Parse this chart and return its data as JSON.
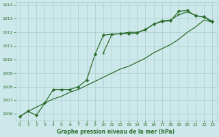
{
  "title": "Graphe pression niveau de la mer (hPa)",
  "bg_color": "#cce8ea",
  "grid_color": "#aacccc",
  "text_color": "#2d6e2d",
  "line_color": "#2d6e2d",
  "ylim": [
    1005.5,
    1014.2
  ],
  "yticks": [
    1006,
    1007,
    1008,
    1009,
    1010,
    1011,
    1012,
    1013,
    1014
  ],
  "xlim": [
    -0.5,
    23.5
  ],
  "xticks": [
    0,
    1,
    2,
    3,
    4,
    5,
    6,
    7,
    8,
    9,
    10,
    11,
    12,
    13,
    14,
    15,
    16,
    17,
    18,
    19,
    20,
    21,
    22,
    23
  ],
  "x_all": [
    0,
    1,
    2,
    3,
    4,
    5,
    6,
    7,
    8,
    9,
    10,
    11,
    12,
    13,
    14,
    15,
    16,
    17,
    18,
    19,
    20,
    21,
    22,
    23
  ],
  "series_diamond_x": [
    0,
    1,
    2,
    3,
    4,
    5,
    6,
    7,
    8,
    9,
    10,
    11,
    12,
    13,
    14,
    15,
    16,
    17,
    18,
    19,
    20,
    21,
    22,
    23
  ],
  "series_diamond_y": [
    1005.8,
    1006.2,
    1005.9,
    1006.8,
    1007.8,
    1007.8,
    1007.8,
    1008.0,
    1008.5,
    1010.4,
    1011.8,
    1011.85,
    1011.9,
    1011.9,
    1011.95,
    1012.2,
    1012.6,
    1012.8,
    1012.85,
    1013.55,
    1013.6,
    1013.2,
    1013.15,
    1012.8
  ],
  "series_plus_x": [
    10,
    11,
    12,
    13,
    14,
    15,
    16,
    17,
    18,
    19,
    20,
    21,
    22,
    23
  ],
  "series_plus_y": [
    1010.5,
    1011.85,
    1011.9,
    1012.0,
    1012.0,
    1012.2,
    1012.6,
    1012.85,
    1012.9,
    1013.3,
    1013.5,
    1013.25,
    1013.1,
    1012.75
  ],
  "series_linear_x": [
    0,
    1,
    2,
    3,
    4,
    5,
    6,
    7,
    8,
    9,
    10,
    11,
    12,
    13,
    14,
    15,
    16,
    17,
    18,
    19,
    20,
    21,
    22,
    23
  ],
  "series_linear_y": [
    1005.8,
    1006.2,
    1006.5,
    1006.8,
    1007.1,
    1007.3,
    1007.6,
    1007.8,
    1008.1,
    1008.4,
    1008.7,
    1009.0,
    1009.3,
    1009.5,
    1009.8,
    1010.1,
    1010.5,
    1010.8,
    1011.1,
    1011.5,
    1012.0,
    1012.4,
    1012.9,
    1012.75
  ]
}
